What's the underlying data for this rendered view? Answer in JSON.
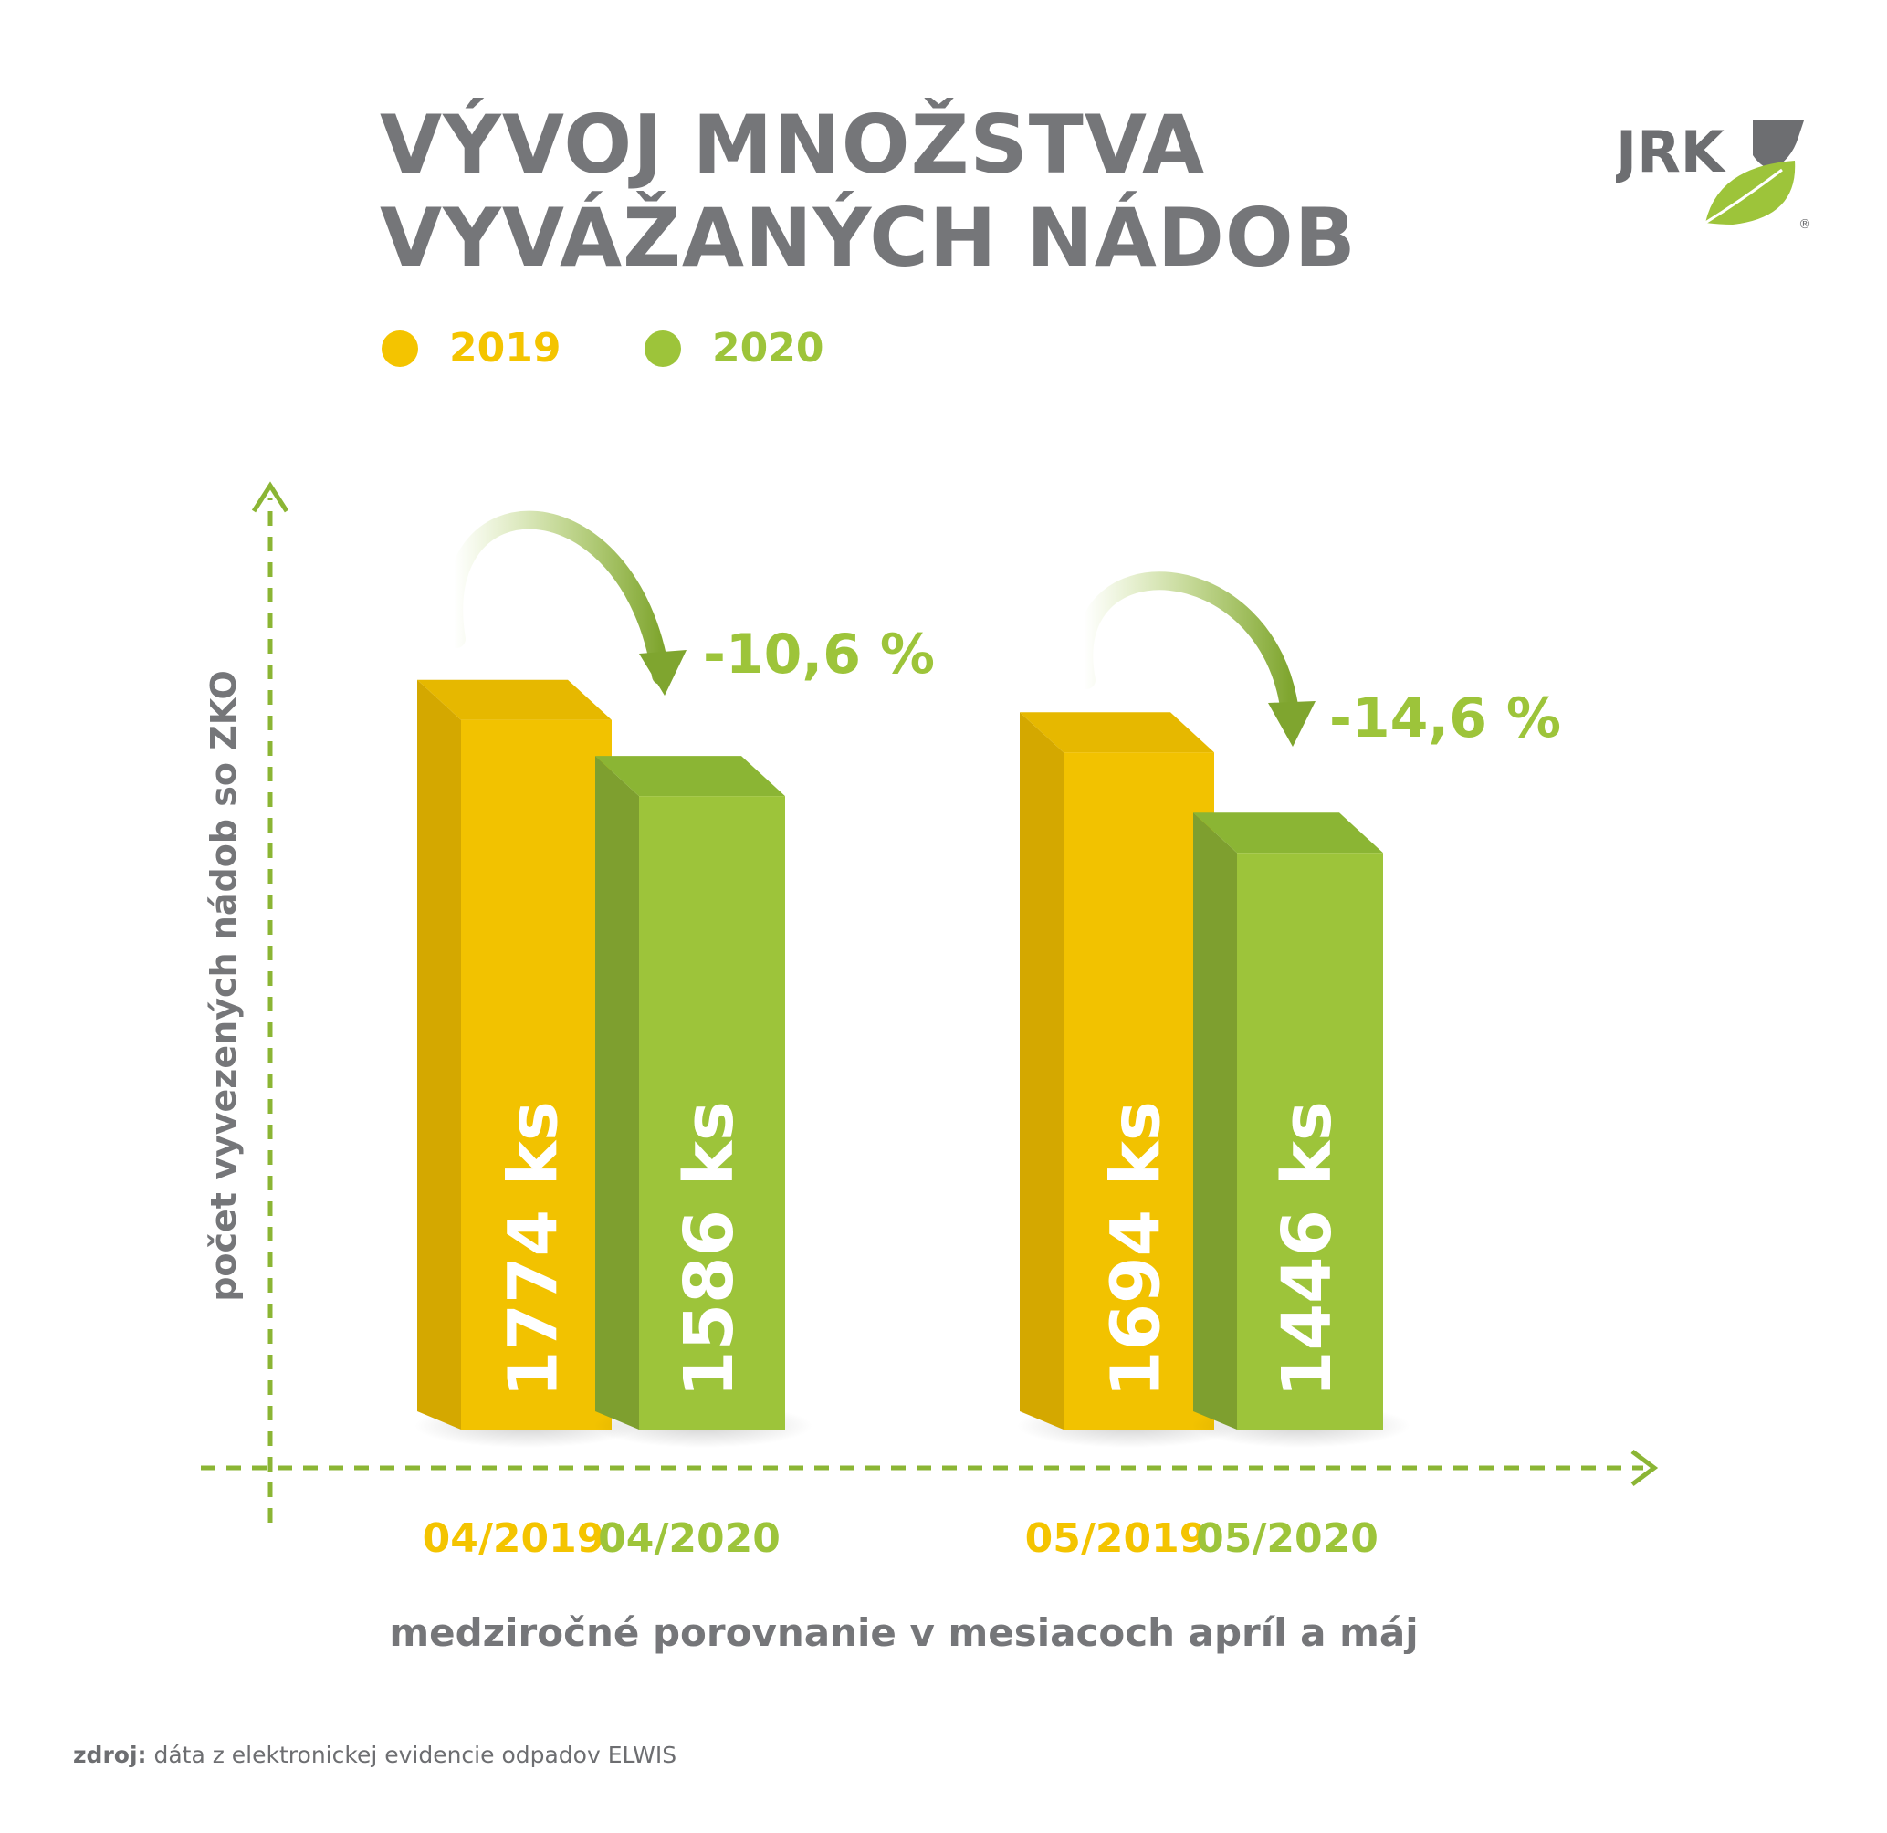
{
  "title_lines": [
    "VÝVOJ MNOŽSTVA",
    "VYVÁŽANÝCH NÁDOB"
  ],
  "legend": [
    {
      "label": "2019",
      "color": "#f4c400"
    },
    {
      "label": "2020",
      "color": "#9dc43a"
    }
  ],
  "logo_text": "JRK",
  "colors": {
    "text_gray": "#757679",
    "axis_green": "#8bb534",
    "yellow": "#f4c400",
    "green": "#9dc43a"
  },
  "chart_data": {
    "type": "bar",
    "categories": [
      "04/2019",
      "04/2020",
      "05/2019",
      "05/2020"
    ],
    "values": [
      1774,
      1586,
      1694,
      1446
    ],
    "value_labels": [
      "1774 ks",
      "1586 ks",
      "1694 ks",
      "1446 ks"
    ],
    "series": [
      {
        "name": "2019",
        "values": [
          1774,
          null,
          1694,
          null
        ]
      },
      {
        "name": "2020",
        "values": [
          null,
          1586,
          null,
          1446
        ]
      }
    ],
    "annotations": [
      "-10,6 %",
      "-14,6 %"
    ],
    "ylabel": "počet vyvezených nádob so ZKO",
    "xlabel": "medziročné porovnanie v mesiacoch apríl a máj",
    "grid": false,
    "legend_position": "top-left"
  },
  "source": {
    "prefix": "zdroj:",
    "text": " dáta z elektronickej evidencie odpadov ELWIS"
  }
}
